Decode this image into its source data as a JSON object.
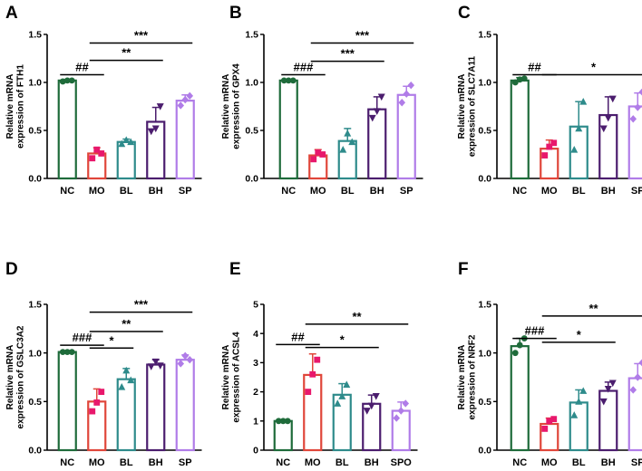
{
  "colors": {
    "NC": "#1e6b3a",
    "MO": "#e0463a",
    "BL": "#2e8b8b",
    "BH": "#4b1d6e",
    "SP": "#b07ce8",
    "marker": "#e8186c",
    "axis": "#000000"
  },
  "chart_data": [
    {
      "type": "bar",
      "panel": "A",
      "ylabel": [
        "Relative mRNA",
        "expression of FTH1"
      ],
      "categories": [
        "NC",
        "MO",
        "BL",
        "BH",
        "SP"
      ],
      "values": [
        1.02,
        0.26,
        0.38,
        0.59,
        0.81
      ],
      "errors": [
        0.01,
        0.06,
        0.03,
        0.15,
        0.06
      ],
      "points": [
        [
          1.01,
          1.02,
          1.02
        ],
        [
          0.21,
          0.3,
          0.26
        ],
        [
          0.36,
          0.4,
          0.38
        ],
        [
          0.49,
          0.52,
          0.75
        ],
        [
          0.76,
          0.82,
          0.86
        ]
      ],
      "ylim": [
        0,
        1.5
      ],
      "yticks": [
        "0.0",
        "0.5",
        "1.0",
        "1.5"
      ],
      "sig": [
        {
          "from": 0,
          "to": 1,
          "value": 1.08,
          "label": "##"
        },
        {
          "from": 1,
          "to": 3,
          "value": 1.23,
          "label": "**"
        },
        {
          "from": 1,
          "to": 4,
          "value": 1.41,
          "label": "***"
        }
      ]
    },
    {
      "type": "bar",
      "panel": "B",
      "ylabel": [
        "Relative mRNA",
        "expression of GPX4"
      ],
      "categories": [
        "NC",
        "MO",
        "BL",
        "BH",
        "SP"
      ],
      "values": [
        1.02,
        0.24,
        0.39,
        0.72,
        0.87
      ],
      "errors": [
        0.01,
        0.06,
        0.13,
        0.13,
        0.09
      ],
      "points": [
        [
          1.02,
          1.02,
          1.02
        ],
        [
          0.2,
          0.27,
          0.25
        ],
        [
          0.3,
          0.47,
          0.38
        ],
        [
          0.63,
          0.7,
          0.85
        ],
        [
          0.79,
          0.88,
          0.97
        ]
      ],
      "ylim": [
        0,
        1.5
      ],
      "yticks": [
        "0.0",
        "0.5",
        "1.0",
        "1.5"
      ],
      "sig": [
        {
          "from": 0,
          "to": 1,
          "value": 1.08,
          "label": "###"
        },
        {
          "from": 1,
          "to": 3,
          "value": 1.22,
          "label": "***"
        },
        {
          "from": 1,
          "to": 4,
          "value": 1.41,
          "label": "***"
        }
      ]
    },
    {
      "type": "bar",
      "panel": "C",
      "ylabel": [
        "Relative mRNA",
        "expression of SLC7A11"
      ],
      "categories": [
        "NC",
        "MO",
        "BL",
        "BH",
        "SP"
      ],
      "values": [
        1.02,
        0.31,
        0.54,
        0.66,
        0.75
      ],
      "errors": [
        0.03,
        0.09,
        0.26,
        0.19,
        0.14
      ],
      "points": [
        [
          1.0,
          1.03,
          1.04
        ],
        [
          0.24,
          0.33,
          0.37
        ],
        [
          0.3,
          0.52,
          0.8
        ],
        [
          0.52,
          0.63,
          0.83
        ],
        [
          0.62,
          0.74,
          0.9
        ]
      ],
      "ylim": [
        0,
        1.5
      ],
      "yticks": [
        "0.0",
        "0.5",
        "1.0",
        "1.5"
      ],
      "sig": [
        {
          "from": 0,
          "to": 1,
          "value": 1.08,
          "label": "##"
        },
        {
          "from": 1,
          "to": 4,
          "value": 1.08,
          "label": "*"
        }
      ]
    },
    {
      "type": "bar",
      "panel": "D",
      "ylabel": [
        "Relative mRNA",
        "expression of GSLC3A2"
      ],
      "categories": [
        "NC",
        "MO",
        "BL",
        "BH",
        "SP"
      ],
      "values": [
        1.01,
        0.5,
        0.73,
        0.88,
        0.93
      ],
      "errors": [
        0.01,
        0.13,
        0.11,
        0.05,
        0.05
      ],
      "points": [
        [
          1.01,
          1.01,
          1.01
        ],
        [
          0.4,
          0.49,
          0.6
        ],
        [
          0.65,
          0.82,
          0.72
        ],
        [
          0.86,
          0.91,
          0.87
        ],
        [
          0.89,
          0.97,
          0.93
        ]
      ],
      "ylim": [
        0,
        1.5
      ],
      "yticks": [
        "0.0",
        "0.5",
        "1.0",
        "1.5"
      ],
      "sig": [
        {
          "from": 0,
          "to": 1,
          "value": 1.08,
          "label": "###"
        },
        {
          "from": 1,
          "to": 2,
          "value": 1.05,
          "label": "*"
        },
        {
          "from": 1,
          "to": 3,
          "value": 1.22,
          "label": "**"
        },
        {
          "from": 1,
          "to": 4,
          "value": 1.42,
          "label": "***"
        }
      ]
    },
    {
      "type": "bar",
      "panel": "E",
      "ylabel": [
        "Relative mRNA",
        "expression of ACSL4"
      ],
      "categories": [
        "NC",
        "MO",
        "BL",
        "BH",
        "SPO"
      ],
      "values": [
        1.0,
        2.58,
        1.9,
        1.59,
        1.35
      ],
      "errors": [
        0.01,
        0.72,
        0.38,
        0.3,
        0.3
      ],
      "points": [
        [
          1.0,
          1.0,
          1.0
        ],
        [
          2.0,
          2.6,
          3.1
        ],
        [
          1.6,
          1.85,
          2.25
        ],
        [
          1.35,
          1.52,
          1.85
        ],
        [
          1.1,
          1.35,
          1.6
        ]
      ],
      "ylim": [
        0,
        5
      ],
      "yticks": [
        "0",
        "1",
        "2",
        "3",
        "4",
        "5"
      ],
      "sig": [
        {
          "from": 0,
          "to": 1,
          "value": 3.62,
          "label": "##"
        },
        {
          "from": 1,
          "to": 3,
          "value": 3.52,
          "label": "*"
        },
        {
          "from": 1,
          "to": 4,
          "value": 4.32,
          "label": "**"
        }
      ]
    },
    {
      "type": "bar",
      "panel": "F",
      "ylabel": [
        "Relative mRNA",
        "expression of NRF2"
      ],
      "categories": [
        "NC",
        "MO",
        "BL",
        "BH",
        "SP"
      ],
      "values": [
        1.07,
        0.27,
        0.49,
        0.61,
        0.74
      ],
      "errors": [
        0.08,
        0.06,
        0.13,
        0.09,
        0.15
      ],
      "points": [
        [
          1.0,
          1.08,
          1.15
        ],
        [
          0.22,
          0.3,
          0.32
        ],
        [
          0.36,
          0.5,
          0.61
        ],
        [
          0.5,
          0.63,
          0.69
        ],
        [
          0.62,
          0.75,
          0.9
        ]
      ],
      "ylim": [
        0,
        1.5
      ],
      "yticks": [
        "0.0",
        "0.5",
        "1.0",
        "1.5"
      ],
      "sig": [
        {
          "from": 0,
          "to": 1,
          "value": 1.15,
          "label": "###"
        },
        {
          "from": 1,
          "to": 3,
          "value": 1.11,
          "label": "*"
        },
        {
          "from": 1,
          "to": 4,
          "value": 1.38,
          "label": "**"
        }
      ]
    }
  ]
}
